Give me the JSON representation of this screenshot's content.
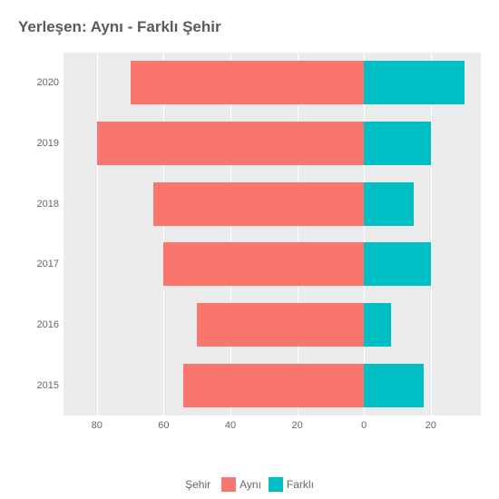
{
  "chart": {
    "type": "diverging-bar-horizontal",
    "title": "Yerleşen: Aynı - Farklı Şehir",
    "title_fontsize": 17,
    "title_color": "#5a5a5a",
    "background_color": "#ebebeb",
    "grid_color": "#ffffff",
    "text_color": "#666666",
    "label_fontsize": 11,
    "categories": [
      "2020",
      "2019",
      "2018",
      "2017",
      "2016",
      "2015"
    ],
    "series": [
      {
        "name": "Aynı",
        "color": "#f8766d",
        "direction": "left",
        "values": [
          70,
          80,
          63,
          60,
          50,
          54
        ]
      },
      {
        "name": "Farklı",
        "color": "#00bfc4",
        "direction": "right",
        "values": [
          30,
          20,
          15,
          20,
          8,
          18
        ]
      }
    ],
    "x_ticks": [
      80,
      60,
      40,
      20,
      0,
      20
    ],
    "x_domain_left": 90,
    "x_domain_right": 35,
    "bar_height_ratio": 0.72,
    "legend": {
      "title": "Şehir",
      "items": [
        "Aynı",
        "Farklı"
      ]
    }
  }
}
